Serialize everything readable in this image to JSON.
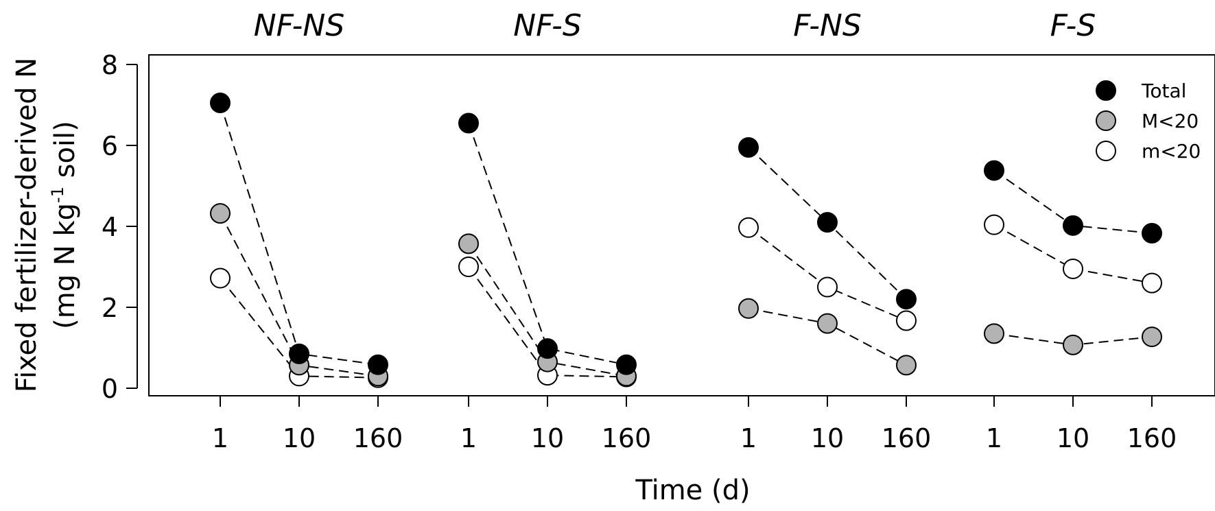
{
  "chart_data": {
    "type": "scatter",
    "ylabel_line1": "Fixed fertilizer-derived N",
    "ylabel_line2_prefix": "(mg N kg",
    "ylabel_line2_superscript": "-1",
    "ylabel_line2_suffix": " soil)",
    "xlabel": "Time (d)",
    "ylim": [
      0,
      8
    ],
    "yticks": [
      "0",
      "2",
      "4",
      "6",
      "8"
    ],
    "time_points": [
      "1",
      "10",
      "160"
    ],
    "legend": {
      "position": "top-right",
      "entries": [
        {
          "key": "total",
          "label": "Total"
        },
        {
          "key": "M20",
          "label": "M<20"
        },
        {
          "key": "m20",
          "label": "m<20"
        }
      ]
    },
    "series_colors": {
      "total": "#000000",
      "M20": "#b3b3b3",
      "m20": "#ffffff"
    },
    "panels": [
      {
        "title": "NF-NS",
        "total": [
          7.05,
          0.85,
          0.58
        ],
        "M20": [
          4.32,
          0.57,
          0.3
        ],
        "m20": [
          2.72,
          0.3,
          0.26
        ]
      },
      {
        "title": "NF-S",
        "total": [
          6.55,
          0.98,
          0.58
        ],
        "M20": [
          3.57,
          0.65,
          0.3
        ],
        "m20": [
          3.0,
          0.32,
          0.28
        ]
      },
      {
        "title": "F-NS",
        "total": [
          5.95,
          4.1,
          2.2
        ],
        "M20": [
          1.97,
          1.6,
          0.57
        ],
        "m20": [
          3.97,
          2.5,
          1.67
        ]
      },
      {
        "title": "F-S",
        "total": [
          5.38,
          4.02,
          3.83
        ],
        "M20": [
          1.35,
          1.07,
          1.27
        ],
        "m20": [
          4.04,
          2.95,
          2.6
        ]
      }
    ]
  }
}
